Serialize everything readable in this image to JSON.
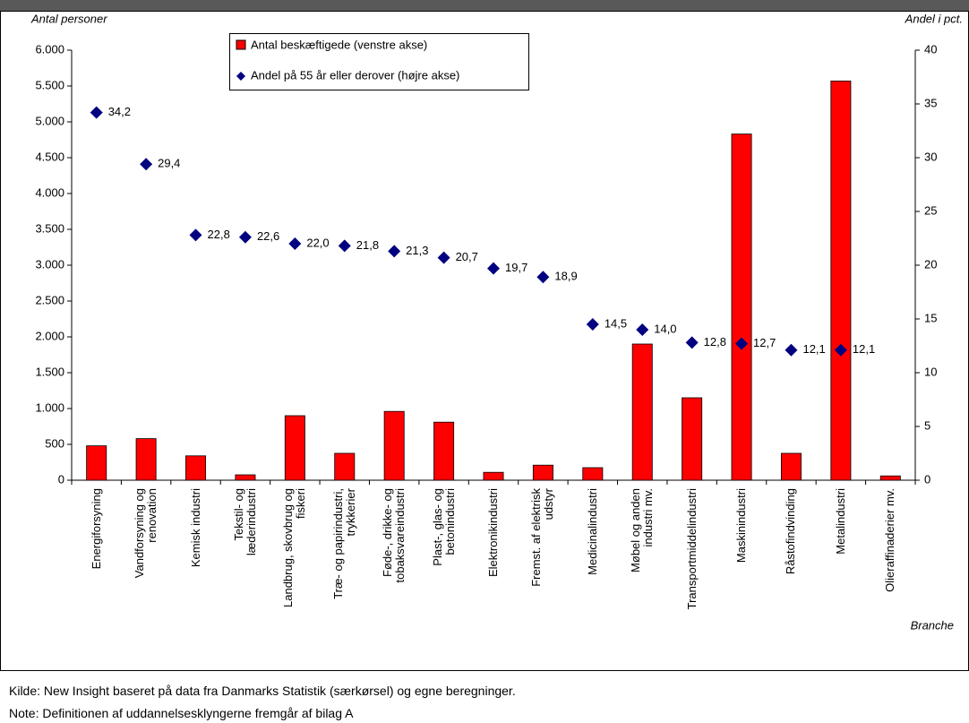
{
  "chart_data": {
    "type": "bar-scatter",
    "y_label": "Antal personer",
    "y2_label": "Andel i pct.",
    "x_label": "Branche",
    "categories": [
      "Energiforsyning",
      "Vandforsyning og\nrenovation",
      "Kemisk industri",
      "Tekstil- og\nlæderindustri",
      "Landbrug, skovbrug og\nfiskeri",
      "Træ- og papirindustri,\ntrykkerier",
      "Føde-, drikke- og\ntobaksvareindustri",
      "Plast-, glas- og\nbetonindustri",
      "Elektronikindustri",
      "Fremst. af elektrisk\nudstyr",
      "Medicinalindustri",
      "Møbel og anden\nindustri mv.",
      "Transportmiddelindustri",
      "Maskinindustri",
      "Råstofindvinding",
      "Metalindustri",
      "Olieraffinaderier mv."
    ],
    "series": [
      {
        "name": "Antal beskæftigede (venstre akse)",
        "color": "#ff0000",
        "values": [
          480,
          580,
          340,
          75,
          900,
          375,
          960,
          810,
          110,
          210,
          175,
          1900,
          1150,
          4830,
          375,
          5570,
          60
        ]
      },
      {
        "name": "Andel på 55 år eller derover (højre akse)",
        "color": "#000080",
        "axis": "y2",
        "values": [
          34.2,
          29.4,
          22.8,
          22.6,
          22.0,
          21.8,
          21.3,
          20.7,
          19.7,
          18.9,
          14.5,
          14.0,
          12.8,
          12.7,
          12.1,
          12.1,
          null
        ],
        "value_labels": [
          "34,2",
          "29,4",
          "22,8",
          "22,6",
          "22,0",
          "21,8",
          "21,3",
          "20,7",
          "19,7",
          "18,9",
          "14,5",
          "14,0",
          "12,8",
          "12,7",
          "12,1",
          "12,1",
          null
        ]
      }
    ],
    "ylim": [
      0,
      6000
    ],
    "yticks": [
      0,
      500,
      {
        "value": 1000,
        "label": "1.000"
      },
      {
        "value": 1500,
        "label": "1.500"
      },
      {
        "value": 2000,
        "label": "2.000"
      },
      {
        "value": 2500,
        "label": "2.500"
      },
      {
        "value": 3000,
        "label": "3.000"
      },
      {
        "value": 3500,
        "label": "3.500"
      },
      {
        "value": 4000,
        "label": "4.000"
      },
      {
        "value": 4500,
        "label": "4.500"
      },
      {
        "value": 5000,
        "label": "5.000"
      },
      {
        "value": 5500,
        "label": "5.500"
      },
      {
        "value": 6000,
        "label": "6.000"
      }
    ],
    "y2lim": [
      0,
      40
    ],
    "y2ticks": [
      0,
      5,
      10,
      15,
      20,
      25,
      30,
      35,
      40
    ],
    "grid": false
  },
  "footer": {
    "source": "Kilde: New Insight baseret på data fra Danmarks Statistik (særkørsel) og egne beregninger.",
    "note": "Note: Definitionen af uddannelsesklyngerne fremgår af bilag A"
  }
}
